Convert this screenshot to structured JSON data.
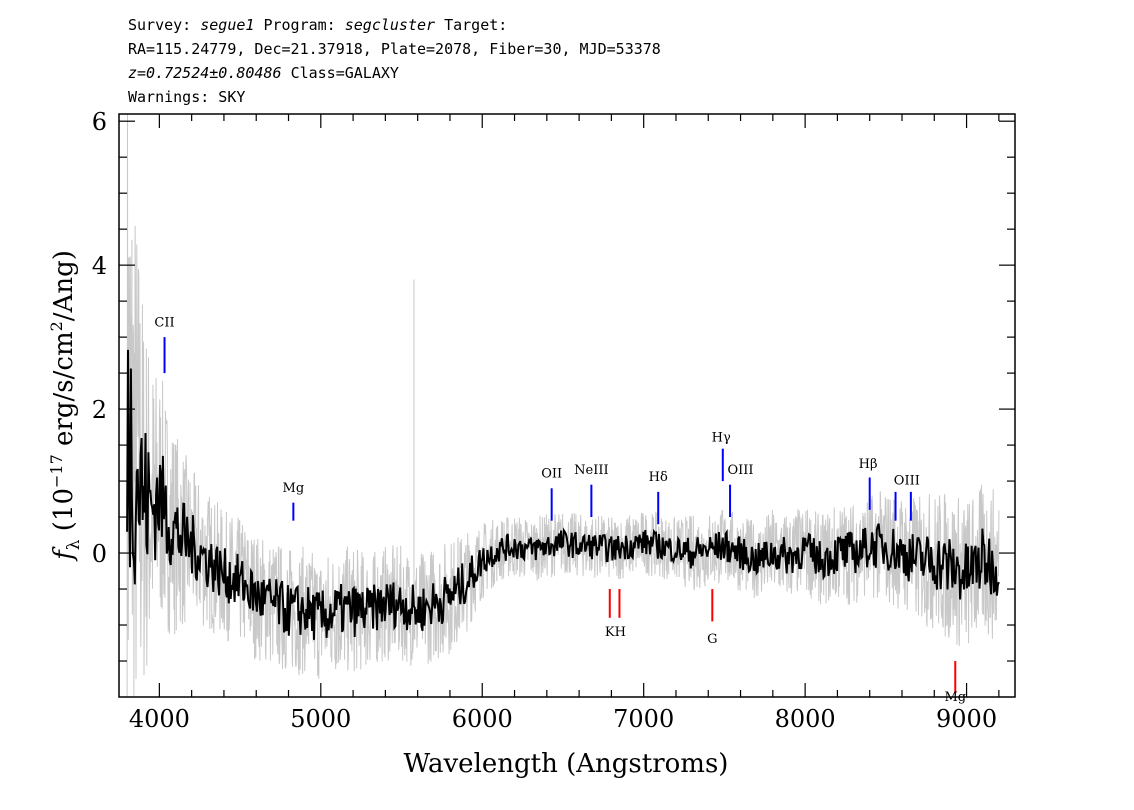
{
  "header": {
    "line1": {
      "survey_label": "Survey:",
      "survey": "segue1",
      "program_label": "Program:",
      "program": "segcluster",
      "target_label": "Target:"
    },
    "line2": "RA=115.24779, Dec=21.37918, Plate=2078, Fiber=30, MJD=53378",
    "line3": {
      "z": "z=0.72524±0.80486",
      "class": "Class=GALAXY"
    },
    "line4": "Warnings: SKY"
  },
  "chart_data": {
    "type": "line",
    "xlabel": "Wavelength (Angstroms)",
    "ylabel": "f_λ (10^-17 erg/s/cm^2/Ang)",
    "xlim": [
      3750,
      9300
    ],
    "ylim": [
      -2.0,
      6.1
    ],
    "xticks": [
      4000,
      5000,
      6000,
      7000,
      8000,
      9000
    ],
    "yticks": [
      0,
      2,
      4,
      6
    ],
    "series": [
      {
        "role": "smoothed flux",
        "color": "#000000",
        "x": [
          3800,
          3850,
          3900,
          3950,
          4000,
          4050,
          4100,
          4150,
          4200,
          4300,
          4400,
          4500,
          4600,
          4700,
          4800,
          4900,
          5000,
          5100,
          5200,
          5300,
          5400,
          5500,
          5600,
          5700,
          5800,
          5900,
          6000,
          6100,
          6200,
          6300,
          6400,
          6500,
          6600,
          6700,
          6800,
          6900,
          7000,
          7100,
          7200,
          7300,
          7400,
          7500,
          7600,
          7700,
          7800,
          7900,
          8000,
          8100,
          8200,
          8300,
          8400,
          8500,
          8600,
          8700,
          8800,
          8900,
          9000,
          9100,
          9200
        ],
        "y": [
          1.9,
          1.2,
          0.8,
          0.6,
          0.8,
          0.5,
          0.3,
          0.2,
          0.1,
          -0.1,
          -0.3,
          -0.4,
          -0.6,
          -0.7,
          -0.8,
          -0.8,
          -0.9,
          -0.8,
          -0.8,
          -0.8,
          -0.7,
          -0.7,
          -0.8,
          -0.7,
          -0.6,
          -0.4,
          -0.1,
          0.05,
          0.1,
          0.05,
          0.1,
          0.15,
          0.1,
          0.1,
          0.05,
          0.1,
          0.15,
          0.1,
          0.05,
          0.0,
          0.05,
          0.1,
          0.0,
          -0.1,
          0.0,
          -0.05,
          0.05,
          -0.1,
          0.0,
          0.0,
          0.1,
          0.1,
          0.0,
          -0.1,
          -0.1,
          -0.2,
          -0.3,
          -0.1,
          -0.2
        ],
        "noise": [
          3.0,
          2.2,
          1.6,
          1.2,
          1.0,
          0.9,
          0.8,
          0.7,
          0.6,
          0.55,
          0.5,
          0.5,
          0.5,
          0.5,
          0.5,
          0.5,
          0.5,
          0.5,
          0.5,
          0.45,
          0.45,
          0.45,
          0.45,
          0.45,
          0.45,
          0.4,
          0.3,
          0.25,
          0.25,
          0.25,
          0.25,
          0.25,
          0.25,
          0.25,
          0.25,
          0.25,
          0.25,
          0.25,
          0.25,
          0.3,
          0.3,
          0.3,
          0.3,
          0.3,
          0.35,
          0.35,
          0.35,
          0.35,
          0.4,
          0.4,
          0.4,
          0.45,
          0.45,
          0.5,
          0.55,
          0.6,
          0.6,
          0.6,
          0.6
        ]
      }
    ],
    "emission_lines": [
      {
        "label": "CII",
        "x": 4032,
        "y0": 2.5,
        "y1": 3.0,
        "tx": 4032,
        "ty": 3.15
      },
      {
        "label": "Mg",
        "x": 4830,
        "y0": 0.45,
        "y1": 0.7,
        "tx": 4830,
        "ty": 0.85
      },
      {
        "label": "OII",
        "x": 6430,
        "y0": 0.45,
        "y1": 0.9,
        "tx": 6430,
        "ty": 1.05
      },
      {
        "label": "NeIII",
        "x": 6676,
        "y0": 0.5,
        "y1": 0.95,
        "tx": 6676,
        "ty": 1.1
      },
      {
        "label": "Hδ",
        "x": 7090,
        "y0": 0.4,
        "y1": 0.85,
        "tx": 7090,
        "ty": 1.0
      },
      {
        "label": "Hγ",
        "x": 7490,
        "y0": 1.0,
        "y1": 1.45,
        "tx": 7480,
        "ty": 1.55
      },
      {
        "label": "OIII",
        "x": 7535,
        "y0": 0.5,
        "y1": 0.95,
        "tx": 7600,
        "ty": 1.1
      },
      {
        "label": "Hβ",
        "x": 8400,
        "y0": 0.6,
        "y1": 1.05,
        "tx": 8390,
        "ty": 1.18
      },
      {
        "label": "OIII",
        "x": 8560,
        "y0": 0.45,
        "y1": 0.85,
        "tx": 8630,
        "ty": 0.95
      },
      {
        "label": "OIII",
        "x": 8655,
        "y0": 0.45,
        "y1": 0.85,
        "tx": null,
        "ty": null
      }
    ],
    "absorption_lines": [
      {
        "label": "K",
        "x": 6790,
        "y0": -0.5,
        "y1": -0.9,
        "tx": 6790,
        "ty": -1.15
      },
      {
        "label": "H",
        "x": 6850,
        "y0": -0.5,
        "y1": -0.9,
        "tx": 6855,
        "ty": -1.15
      },
      {
        "label": "G",
        "x": 7425,
        "y0": -0.5,
        "y1": -0.95,
        "tx": 7425,
        "ty": -1.25
      },
      {
        "label": "Mg",
        "x": 8930,
        "y0": -1.5,
        "y1": -1.95,
        "tx": 8930,
        "ty": -2.15
      }
    ],
    "spikes": [
      {
        "x": 5577,
        "y0": -0.6,
        "y1": 3.8,
        "color": "#c8c8c8"
      }
    ],
    "colors": {
      "flux": "#000000",
      "noise": "#c8c8c8",
      "emission": "#0000ff",
      "absorption": "#ff0000",
      "axis": "#000000"
    }
  }
}
